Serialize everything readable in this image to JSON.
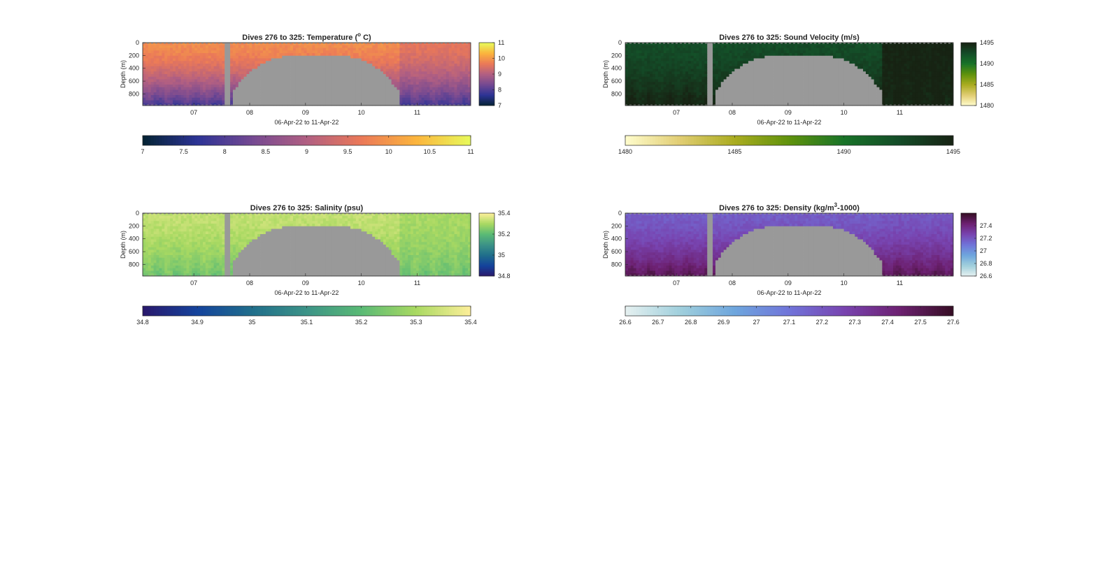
{
  "figure": {
    "date_range_label": "06-Apr-22 to 11-Apr-22"
  },
  "chart_data": [
    {
      "type": "heatmap",
      "title": "Dives 276 to 325: Temperature (°C)",
      "title_parts": {
        "pre": "Dives 276 to 325: Temperature (",
        "sup": "o",
        "post": " C)"
      },
      "xlabel": "06-Apr-22 to 11-Apr-22",
      "ylabel": "Depth (m)",
      "x_range": [
        "06-Apr-22 02:00",
        "11-Apr-22 23:00"
      ],
      "x_ticks": [
        "07",
        "08",
        "09",
        "10",
        "11"
      ],
      "y_ticks": [
        0,
        200,
        400,
        600,
        800
      ],
      "y_range": [
        0,
        980
      ],
      "y_reversed": true,
      "colormap": "thermal",
      "colormap_stops": [
        "#042333",
        "#2c3395",
        "#744992",
        "#b15f82",
        "#eb7958",
        "#fbb43d",
        "#e8fa5b"
      ],
      "surface_value": 9.9,
      "bottom_value": 7.9,
      "right_column_value": 9.6,
      "side_colorbar": {
        "range": [
          7,
          11
        ],
        "ticks": [
          "7",
          "8",
          "9",
          "10",
          "11"
        ]
      },
      "bottom_colorbar": {
        "range": [
          7,
          11
        ],
        "ticks": [
          "7",
          "7.5",
          "8",
          "8.5",
          "9",
          "9.5",
          "10",
          "10.5",
          "11"
        ]
      }
    },
    {
      "type": "heatmap",
      "title": "Dives 276 to 325: Sound Velocity (m/s)",
      "title_parts": {
        "pre": "Dives 276 to 325: Sound Velocity (m/s)",
        "sup": "",
        "post": ""
      },
      "xlabel": "06-Apr-22 to 11-Apr-22",
      "ylabel": "Depth (m)",
      "x_range": [
        "06-Apr-22 02:00",
        "11-Apr-22 23:00"
      ],
      "x_ticks": [
        "07",
        "08",
        "09",
        "10",
        "11"
      ],
      "y_ticks": [
        0,
        200,
        400,
        600,
        800
      ],
      "y_range": [
        0,
        980
      ],
      "y_reversed": true,
      "colormap": "speed",
      "colormap_stops": [
        "#fffdcd",
        "#e1cd73",
        "#aaac20",
        "#5f920c",
        "#187328",
        "#144c28",
        "#172313"
      ],
      "surface_value": 1492.5,
      "bottom_value": 1495,
      "right_column_value": 1495,
      "side_colorbar": {
        "range": [
          1480,
          1495
        ],
        "ticks": [
          "1480",
          "1485",
          "1490",
          "1495"
        ]
      },
      "bottom_colorbar": {
        "range": [
          1480,
          1495
        ],
        "ticks": [
          "1480",
          "1485",
          "1490",
          "1495"
        ]
      }
    },
    {
      "type": "heatmap",
      "title": "Dives 276 to 325: Salinity (psu)",
      "title_parts": {
        "pre": "Dives 276 to 325: Salinity (psu)",
        "sup": "",
        "post": ""
      },
      "xlabel": "06-Apr-22 to 11-Apr-22",
      "ylabel": "Depth (m)",
      "x_range": [
        "06-Apr-22 02:00",
        "11-Apr-22 23:00"
      ],
      "x_ticks": [
        "07",
        "08",
        "09",
        "10",
        "11"
      ],
      "y_ticks": [
        0,
        200,
        400,
        600,
        800
      ],
      "y_range": [
        0,
        980
      ],
      "y_reversed": true,
      "colormap": "haline",
      "colormap_stops": [
        "#2a186c",
        "#14439c",
        "#206e8b",
        "#3c9387",
        "#5aba75",
        "#a9d962",
        "#fdef9a"
      ],
      "surface_value": 35.33,
      "bottom_value": 35.23,
      "right_column_value": 35.3,
      "side_colorbar": {
        "range": [
          34.8,
          35.4
        ],
        "ticks": [
          "34.8",
          "35",
          "35.2",
          "35.4"
        ]
      },
      "bottom_colorbar": {
        "range": [
          34.8,
          35.4
        ],
        "ticks": [
          "34.8",
          "34.9",
          "35",
          "35.1",
          "35.2",
          "35.3",
          "35.4"
        ]
      }
    },
    {
      "type": "heatmap",
      "title": "Dives 276 to 325: Density (kg/m³-1000)",
      "title_parts": {
        "pre": "Dives 276 to 325: Density (kg/m",
        "sup": "3",
        "post": "-1000)"
      },
      "xlabel": "06-Apr-22 to 11-Apr-22",
      "ylabel": "Depth (m)",
      "x_range": [
        "06-Apr-22 02:00",
        "11-Apr-22 23:00"
      ],
      "x_ticks": [
        "07",
        "08",
        "09",
        "10",
        "11"
      ],
      "y_ticks": [
        0,
        200,
        400,
        600,
        800
      ],
      "y_range": [
        0,
        980
      ],
      "y_reversed": true,
      "colormap": "dense",
      "colormap_stops": [
        "#e6f1f1",
        "#a0cfdc",
        "#6ea6dd",
        "#7074d9",
        "#7844b0",
        "#6d2172",
        "#360e24"
      ],
      "surface_value": 27.18,
      "bottom_value": 27.5,
      "right_column_value": 27.2,
      "side_colorbar": {
        "range": [
          26.6,
          27.6
        ],
        "ticks": [
          "26.6",
          "26.8",
          "27",
          "27.2",
          "27.4"
        ]
      },
      "bottom_colorbar": {
        "range": [
          26.6,
          27.6
        ],
        "ticks": [
          "26.6",
          "26.7",
          "26.8",
          "26.9",
          "27",
          "27.1",
          "27.2",
          "27.3",
          "27.4",
          "27.5",
          "27.6"
        ]
      }
    }
  ]
}
